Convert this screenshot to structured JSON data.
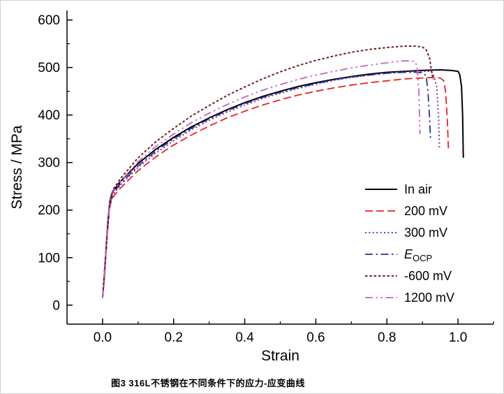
{
  "figure": {
    "caption": "图3  316L不锈钢在不同条件下的应力-应变曲线"
  },
  "chart_data": {
    "type": "line",
    "title": "",
    "xlabel": "Strain",
    "ylabel": "Stress / MPa",
    "xlim": [
      -0.1,
      1.1
    ],
    "ylim": [
      -40,
      620
    ],
    "xticks": [
      0.0,
      0.2,
      0.4,
      0.6,
      0.8,
      1.0
    ],
    "yticks": [
      0,
      100,
      200,
      300,
      400,
      500,
      600
    ],
    "x_minor_step": 0.1,
    "y_minor_step": 50,
    "grid": false,
    "legend_position": "lower right",
    "axis_color": "#000000",
    "series": [
      {
        "name": "In air",
        "color": "#000000",
        "dash": "solid",
        "width": 2,
        "points": [
          [
            0,
            15
          ],
          [
            0.005,
            60
          ],
          [
            0.01,
            120
          ],
          [
            0.015,
            175
          ],
          [
            0.02,
            215
          ],
          [
            0.025,
            232
          ],
          [
            0.03,
            240
          ],
          [
            0.05,
            260
          ],
          [
            0.1,
            298
          ],
          [
            0.15,
            328
          ],
          [
            0.2,
            353
          ],
          [
            0.25,
            375
          ],
          [
            0.3,
            394
          ],
          [
            0.35,
            411
          ],
          [
            0.4,
            426
          ],
          [
            0.45,
            439
          ],
          [
            0.5,
            450
          ],
          [
            0.55,
            460
          ],
          [
            0.6,
            468
          ],
          [
            0.65,
            475
          ],
          [
            0.7,
            481
          ],
          [
            0.75,
            486
          ],
          [
            0.8,
            490
          ],
          [
            0.85,
            492
          ],
          [
            0.9,
            494
          ],
          [
            0.95,
            495
          ],
          [
            0.98,
            494
          ],
          [
            1.0,
            492
          ],
          [
            1.005,
            485
          ],
          [
            1.01,
            460
          ],
          [
            1.013,
            400
          ],
          [
            1.015,
            310
          ]
        ]
      },
      {
        "name": "200 mV",
        "color": "#ed2024",
        "dash": "dashed",
        "width": 1.8,
        "points": [
          [
            0,
            15
          ],
          [
            0.005,
            55
          ],
          [
            0.01,
            110
          ],
          [
            0.015,
            165
          ],
          [
            0.02,
            205
          ],
          [
            0.025,
            220
          ],
          [
            0.03,
            228
          ],
          [
            0.05,
            246
          ],
          [
            0.1,
            283
          ],
          [
            0.15,
            312
          ],
          [
            0.2,
            337
          ],
          [
            0.25,
            358
          ],
          [
            0.3,
            377
          ],
          [
            0.35,
            394
          ],
          [
            0.4,
            408
          ],
          [
            0.45,
            421
          ],
          [
            0.5,
            432
          ],
          [
            0.55,
            442
          ],
          [
            0.6,
            450
          ],
          [
            0.65,
            457
          ],
          [
            0.7,
            463
          ],
          [
            0.75,
            468
          ],
          [
            0.8,
            472
          ],
          [
            0.85,
            476
          ],
          [
            0.9,
            478
          ],
          [
            0.93,
            479
          ],
          [
            0.95,
            478
          ],
          [
            0.96,
            472
          ],
          [
            0.965,
            450
          ],
          [
            0.97,
            390
          ],
          [
            0.973,
            330
          ]
        ]
      },
      {
        "name": "300 mV",
        "color": "#8033a0",
        "dash": "dotted",
        "width": 2,
        "points": [
          [
            0,
            15
          ],
          [
            0.01,
            115
          ],
          [
            0.02,
            210
          ],
          [
            0.03,
            233
          ],
          [
            0.05,
            252
          ],
          [
            0.1,
            290
          ],
          [
            0.15,
            320
          ],
          [
            0.2,
            346
          ],
          [
            0.25,
            369
          ],
          [
            0.3,
            389
          ],
          [
            0.35,
            406
          ],
          [
            0.4,
            421
          ],
          [
            0.45,
            435
          ],
          [
            0.5,
            446
          ],
          [
            0.55,
            456
          ],
          [
            0.6,
            465
          ],
          [
            0.65,
            473
          ],
          [
            0.7,
            479
          ],
          [
            0.75,
            484
          ],
          [
            0.8,
            488
          ],
          [
            0.85,
            491
          ],
          [
            0.9,
            492
          ],
          [
            0.92,
            492
          ],
          [
            0.93,
            488
          ],
          [
            0.94,
            460
          ],
          [
            0.945,
            400
          ],
          [
            0.948,
            330
          ]
        ]
      },
      {
        "name": "E_OCP",
        "color": "#2e3192",
        "dash": "dashdot",
        "width": 1.8,
        "points": [
          [
            0,
            15
          ],
          [
            0.01,
            118
          ],
          [
            0.02,
            212
          ],
          [
            0.03,
            236
          ],
          [
            0.05,
            255
          ],
          [
            0.1,
            293
          ],
          [
            0.15,
            324
          ],
          [
            0.2,
            350
          ],
          [
            0.25,
            372
          ],
          [
            0.3,
            392
          ],
          [
            0.35,
            409
          ],
          [
            0.4,
            424
          ],
          [
            0.45,
            437
          ],
          [
            0.5,
            448
          ],
          [
            0.55,
            458
          ],
          [
            0.6,
            466
          ],
          [
            0.65,
            474
          ],
          [
            0.7,
            480
          ],
          [
            0.75,
            484
          ],
          [
            0.8,
            488
          ],
          [
            0.85,
            490
          ],
          [
            0.88,
            490
          ],
          [
            0.9,
            489
          ],
          [
            0.91,
            483
          ],
          [
            0.915,
            455
          ],
          [
            0.92,
            395
          ],
          [
            0.923,
            345
          ]
        ]
      },
      {
        "name": "-600 mV",
        "color": "#731f23",
        "dash": "shortdash",
        "width": 2,
        "points": [
          [
            0,
            15
          ],
          [
            0.01,
            122
          ],
          [
            0.02,
            218
          ],
          [
            0.03,
            244
          ],
          [
            0.05,
            266
          ],
          [
            0.1,
            310
          ],
          [
            0.15,
            344
          ],
          [
            0.2,
            372
          ],
          [
            0.25,
            398
          ],
          [
            0.3,
            420
          ],
          [
            0.35,
            441
          ],
          [
            0.4,
            459
          ],
          [
            0.45,
            476
          ],
          [
            0.5,
            491
          ],
          [
            0.55,
            504
          ],
          [
            0.6,
            515
          ],
          [
            0.65,
            524
          ],
          [
            0.7,
            532
          ],
          [
            0.75,
            538
          ],
          [
            0.8,
            542
          ],
          [
            0.85,
            545
          ],
          [
            0.88,
            545
          ],
          [
            0.9,
            543
          ],
          [
            0.91,
            538
          ],
          [
            0.92,
            520
          ],
          [
            0.925,
            495
          ],
          [
            0.93,
            475
          ]
        ]
      },
      {
        "name": "1200 mV",
        "color": "#c963be",
        "dash": "dashdotdot",
        "width": 1.8,
        "points": [
          [
            0,
            15
          ],
          [
            0.01,
            118
          ],
          [
            0.02,
            214
          ],
          [
            0.03,
            238
          ],
          [
            0.05,
            260
          ],
          [
            0.1,
            302
          ],
          [
            0.15,
            334
          ],
          [
            0.2,
            360
          ],
          [
            0.25,
            384
          ],
          [
            0.3,
            404
          ],
          [
            0.35,
            422
          ],
          [
            0.4,
            438
          ],
          [
            0.45,
            452
          ],
          [
            0.5,
            464
          ],
          [
            0.55,
            475
          ],
          [
            0.6,
            484
          ],
          [
            0.65,
            492
          ],
          [
            0.7,
            499
          ],
          [
            0.75,
            505
          ],
          [
            0.8,
            510
          ],
          [
            0.83,
            513
          ],
          [
            0.85,
            514
          ],
          [
            0.87,
            514
          ],
          [
            0.88,
            512
          ],
          [
            0.885,
            500
          ],
          [
            0.89,
            450
          ],
          [
            0.893,
            360
          ]
        ]
      }
    ]
  }
}
